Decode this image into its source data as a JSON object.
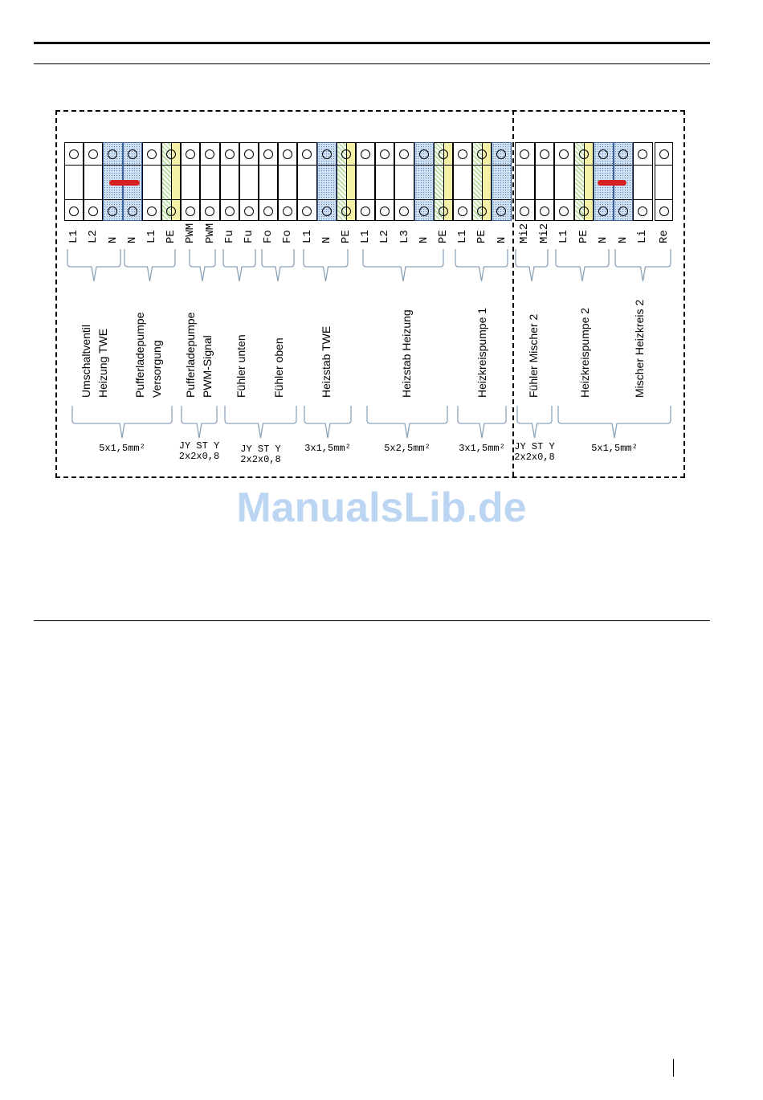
{
  "terminals_left": [
    {
      "label": "L1",
      "type": "plain"
    },
    {
      "label": "L2",
      "type": "plain"
    },
    {
      "label": "N",
      "type": "n"
    },
    {
      "label": "N",
      "type": "n"
    },
    {
      "label": "L1",
      "type": "plain"
    },
    {
      "label": "PE",
      "type": "pe"
    },
    {
      "label": "PWM",
      "type": "plain"
    },
    {
      "label": "PWM",
      "type": "plain"
    },
    {
      "label": "Fu",
      "type": "plain"
    },
    {
      "label": "Fu",
      "type": "plain"
    },
    {
      "label": "Fo",
      "type": "plain"
    },
    {
      "label": "Fo",
      "type": "plain"
    },
    {
      "label": "L1",
      "type": "plain"
    },
    {
      "label": "N",
      "type": "n"
    },
    {
      "label": "PE",
      "type": "pe"
    },
    {
      "label": "L1",
      "type": "plain"
    },
    {
      "label": "L2",
      "type": "plain"
    },
    {
      "label": "L3",
      "type": "plain"
    },
    {
      "label": "N",
      "type": "n"
    },
    {
      "label": "PE",
      "type": "pe"
    },
    {
      "label": "L1",
      "type": "plain"
    },
    {
      "label": "PE",
      "type": "pe"
    },
    {
      "label": "N",
      "type": "n"
    }
  ],
  "terminals_right": [
    {
      "label": "Mi2",
      "type": "plain"
    },
    {
      "label": "Mi2",
      "type": "plain"
    },
    {
      "label": "L1",
      "type": "plain"
    },
    {
      "label": "PE",
      "type": "pe"
    },
    {
      "label": "N",
      "type": "n"
    },
    {
      "label": "N",
      "type": "n"
    },
    {
      "label": "Li",
      "type": "plain"
    },
    {
      "label": "Re",
      "type": "plain"
    }
  ],
  "groups": [
    {
      "lines": [
        "Umschaltventil",
        "Heizung TWE"
      ]
    },
    {
      "lines": [
        "Pufferladepumpe",
        "Versorgung"
      ]
    },
    {
      "lines": [
        "Pufferladepumpe",
        "PWM-Signal"
      ]
    },
    {
      "lines": [
        "Fühler unten"
      ]
    },
    {
      "lines": [
        "Fühler oben"
      ]
    },
    {
      "lines": [
        "Heizstab TWE"
      ]
    },
    {
      "lines": [
        "Heizstab Heizung"
      ]
    },
    {
      "lines": [
        "Heizkreispumpe 1"
      ]
    },
    {
      "lines": [
        "Fühler Mischer 2"
      ]
    },
    {
      "lines": [
        "Heizkreispumpe 2"
      ]
    },
    {
      "lines": [
        "Mischer Heizkreis 2"
      ]
    }
  ],
  "cables": [
    {
      "lines": [
        "5x1,5mm²"
      ]
    },
    {
      "lines": [
        "JY ST Y",
        "2x2x0,8"
      ]
    },
    {
      "lines": [
        "JY ST Y",
        "2x2x0,8"
      ]
    },
    {
      "lines": [
        "3x1,5mm²"
      ]
    },
    {
      "lines": [
        "5x2,5mm²"
      ]
    },
    {
      "lines": [
        "3x1,5mm²"
      ]
    },
    {
      "lines": [
        "JY ST Y",
        "2x2x0,8"
      ]
    },
    {
      "lines": [
        "5x1,5mm²"
      ]
    }
  ],
  "watermark": "ManualsLib.de",
  "colors": {
    "neutral": "#cfe0f3",
    "jumper": "#d42020",
    "watermark": "#bcd5f2"
  }
}
